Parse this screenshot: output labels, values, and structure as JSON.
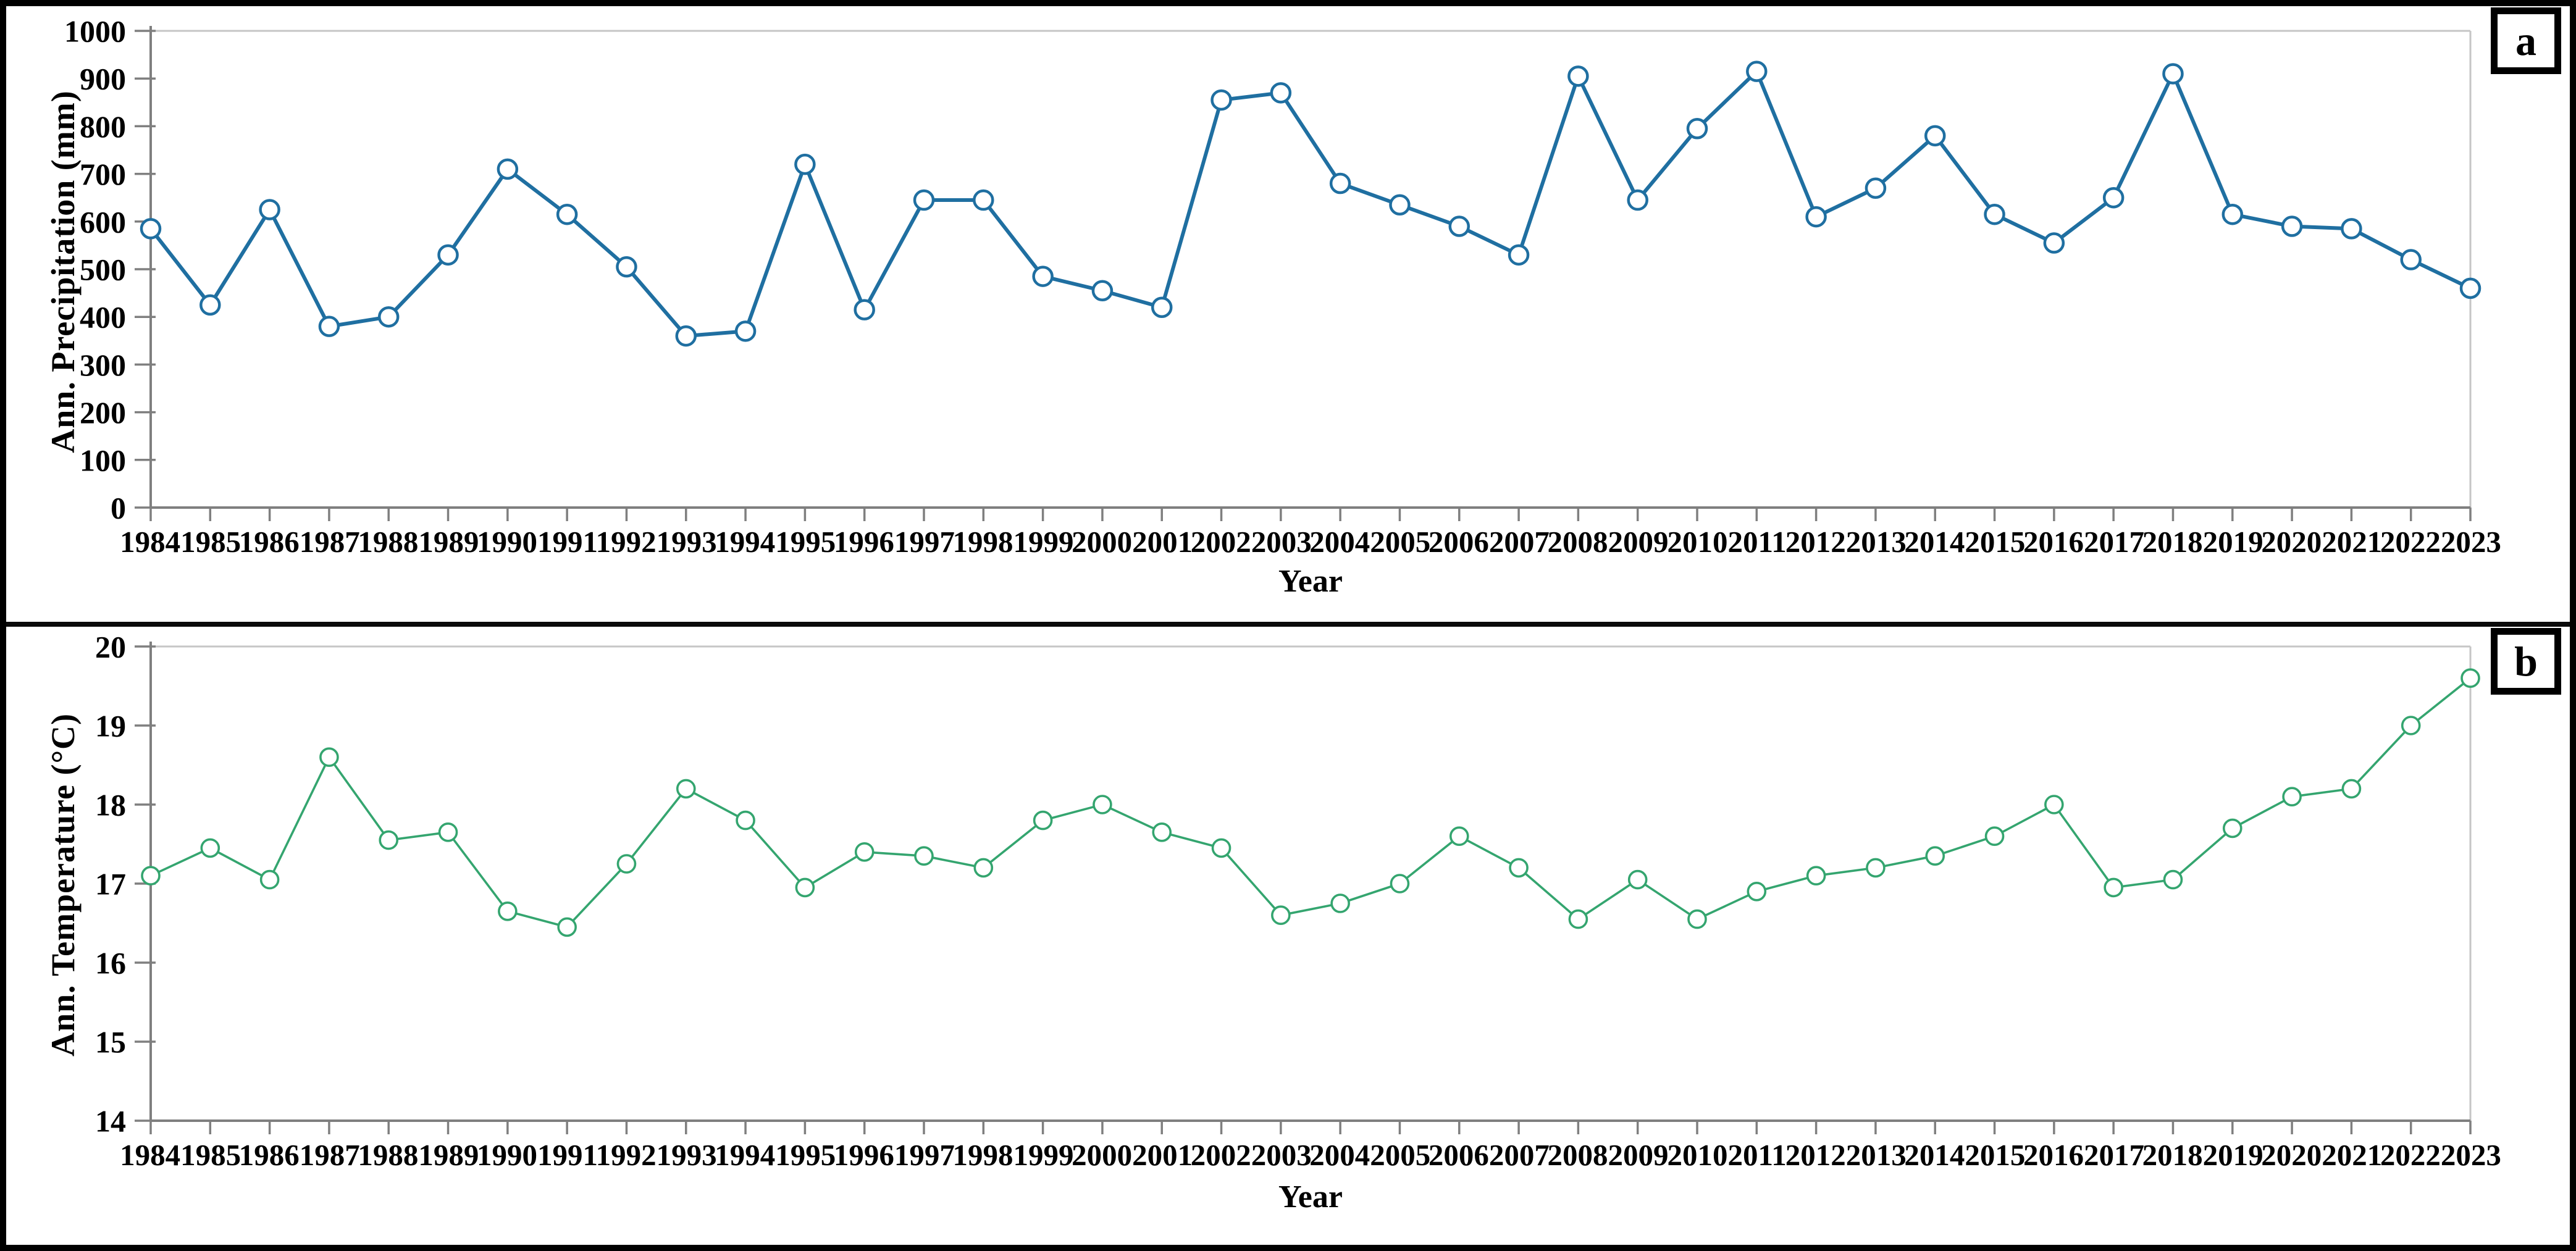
{
  "chart_data": [
    {
      "type": "line",
      "panel_label": "a",
      "title": "",
      "xlabel": "Year",
      "ylabel": "Ann. Precipitation (mm)",
      "ylim": [
        0,
        1000
      ],
      "yticks": [
        0,
        100,
        200,
        300,
        400,
        500,
        600,
        700,
        800,
        900,
        1000
      ],
      "x": [
        1984,
        1985,
        1986,
        1987,
        1988,
        1989,
        1990,
        1991,
        1992,
        1993,
        1994,
        1995,
        1996,
        1997,
        1998,
        1999,
        2000,
        2001,
        2002,
        2003,
        2004,
        2005,
        2006,
        2007,
        2008,
        2009,
        2010,
        2011,
        2012,
        2013,
        2014,
        2015,
        2016,
        2017,
        2018,
        2019,
        2020,
        2021,
        2022,
        2023
      ],
      "xtick_labels": [
        "19841985",
        "19861987",
        "19881989",
        "19901991",
        "19921993",
        "19941995",
        "19961997",
        "19981999",
        "20002001",
        "20022003",
        "20042005",
        "20062007",
        "20082009",
        "20102011",
        "20122013",
        "20142015",
        "20162017",
        "20182019",
        "20202021",
        "20222023"
      ],
      "values": [
        585,
        425,
        625,
        380,
        400,
        530,
        710,
        615,
        505,
        360,
        370,
        720,
        415,
        645,
        645,
        485,
        455,
        420,
        855,
        870,
        680,
        635,
        590,
        530,
        905,
        645,
        795,
        915,
        610,
        670,
        780,
        615,
        555,
        650,
        910,
        615,
        590,
        585,
        520,
        460
      ],
      "series_name": "Annual Precipitation",
      "line_color": "#1f6fa1",
      "marker": "open-circle",
      "marker_fill": "#ffffff",
      "axis_color": "#7f7f7f",
      "frame_color": "#c6c6c6",
      "grid": "top-border-only",
      "legend": "none"
    },
    {
      "type": "line",
      "panel_label": "b",
      "title": "",
      "xlabel": "Year",
      "ylabel": "Ann. Temperature (°C)",
      "ylim": [
        14,
        20
      ],
      "yticks": [
        14,
        15,
        16,
        17,
        18,
        19,
        20
      ],
      "x": [
        1984,
        1985,
        1986,
        1987,
        1988,
        1989,
        1990,
        1991,
        1992,
        1993,
        1994,
        1995,
        1996,
        1997,
        1998,
        1999,
        2000,
        2001,
        2002,
        2003,
        2004,
        2005,
        2006,
        2007,
        2008,
        2009,
        2010,
        2011,
        2012,
        2013,
        2014,
        2015,
        2016,
        2017,
        2018,
        2019,
        2020,
        2021,
        2022,
        2023
      ],
      "xtick_labels": [
        "19841985",
        "19861987",
        "19881989",
        "19901991",
        "19921993",
        "19941995",
        "19961997",
        "19981999",
        "20002001",
        "20022003",
        "20042005",
        "20062007",
        "20082009",
        "20102011",
        "20122013",
        "20142015",
        "20162017",
        "20182019",
        "20202021",
        "20222023"
      ],
      "values": [
        17.1,
        17.45,
        17.05,
        18.6,
        17.55,
        17.65,
        16.65,
        16.45,
        17.25,
        18.2,
        17.8,
        16.95,
        17.4,
        17.35,
        17.2,
        17.8,
        18.0,
        17.65,
        17.45,
        16.6,
        16.75,
        17.0,
        17.6,
        17.2,
        16.55,
        17.05,
        16.55,
        16.9,
        17.1,
        17.2,
        17.35,
        17.6,
        18.0,
        16.95,
        17.05,
        17.7,
        18.1,
        18.2,
        19.0,
        19.6
      ],
      "series_name": "Annual Temperature",
      "line_color": "#34a56f",
      "marker": "open-circle",
      "marker_fill": "#ffffff",
      "axis_color": "#7f7f7f",
      "frame_color": "#c6c6c6",
      "grid": "top-border-only",
      "legend": "none"
    }
  ]
}
